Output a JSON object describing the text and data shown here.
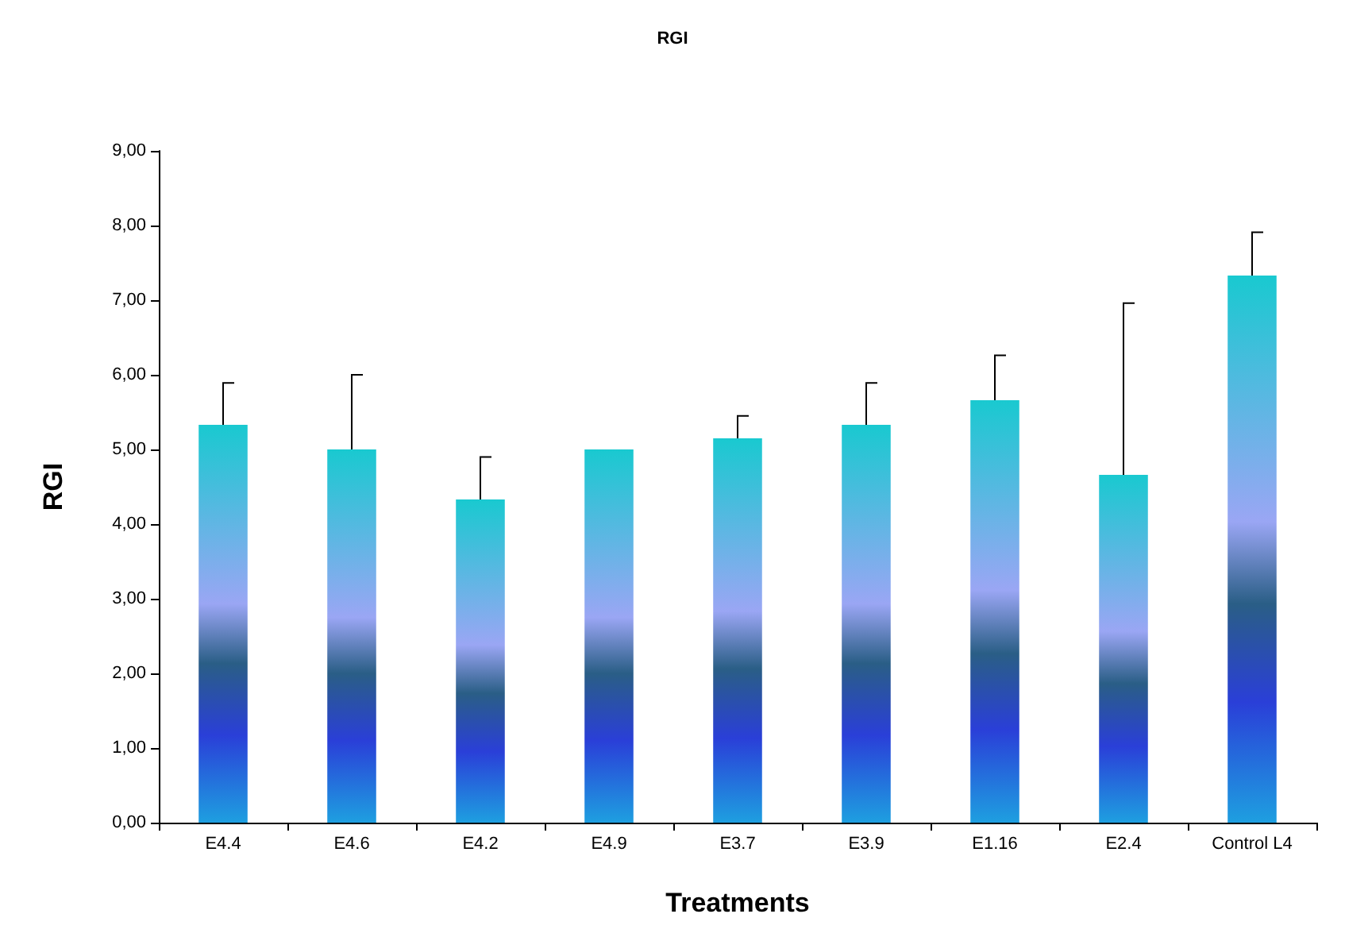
{
  "chart_data": {
    "type": "bar",
    "title": "RGI",
    "xlabel": "Treatments",
    "ylabel": "RGI",
    "categories": [
      "E4.4",
      "E4.6",
      "E4.2",
      "E4.9",
      "E3.7",
      "E3.9",
      "E1.16",
      "E2.4",
      "Control L4"
    ],
    "values": [
      5.33,
      5.0,
      4.33,
      5.0,
      5.15,
      5.33,
      5.66,
      4.66,
      7.33
    ],
    "errors": [
      [
        5.33,
        5.89
      ],
      [
        5.0,
        6.0
      ],
      [
        4.33,
        4.9
      ],
      null,
      [
        5.15,
        5.45
      ],
      [
        5.33,
        5.89
      ],
      [
        5.66,
        6.26
      ],
      [
        4.66,
        6.96
      ],
      [
        7.33,
        7.91
      ]
    ],
    "color": "#1e9fe0",
    "ylim": [
      0,
      9
    ],
    "yticks": [
      {
        "value": 0,
        "label": "0,00"
      },
      {
        "value": 1,
        "label": "1,00"
      },
      {
        "value": 2,
        "label": "2,00"
      },
      {
        "value": 3,
        "label": "3,00"
      },
      {
        "value": 4,
        "label": "4,00"
      },
      {
        "value": 5,
        "label": "5,00"
      },
      {
        "value": 6,
        "label": "6,00"
      },
      {
        "value": 7,
        "label": "7,00"
      },
      {
        "value": 8,
        "label": "8,00"
      },
      {
        "value": 9,
        "label": "9,00"
      }
    ],
    "grid": false
  }
}
